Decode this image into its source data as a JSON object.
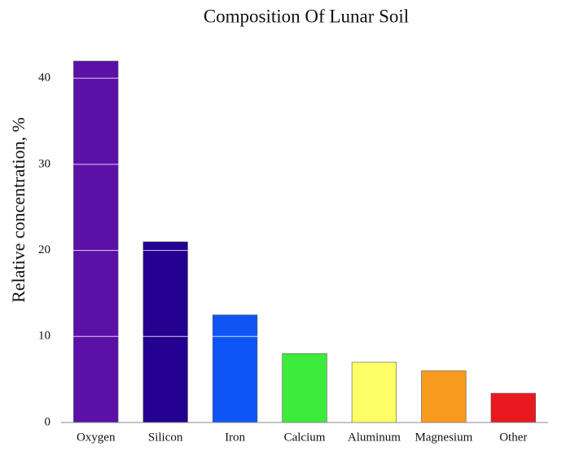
{
  "chart_data": {
    "type": "bar",
    "title": "Composition Of Lunar Soil",
    "y_label": "Relative concentration, %",
    "categories": [
      "Oxygen",
      "Silicon",
      "Iron",
      "Calcium",
      "Aluminum",
      "Magnesium",
      "Other"
    ],
    "values": [
      42,
      21,
      12.5,
      8,
      7,
      6,
      3.4
    ],
    "colors": [
      "#5b10a8",
      "#23008f",
      "#0f55f5",
      "#3ceb3c",
      "#ffff66",
      "#f79a1e",
      "#e8191e"
    ],
    "ylim": [
      0,
      42
    ],
    "yticks": [
      0,
      10,
      20,
      30,
      40
    ],
    "grid": true
  }
}
